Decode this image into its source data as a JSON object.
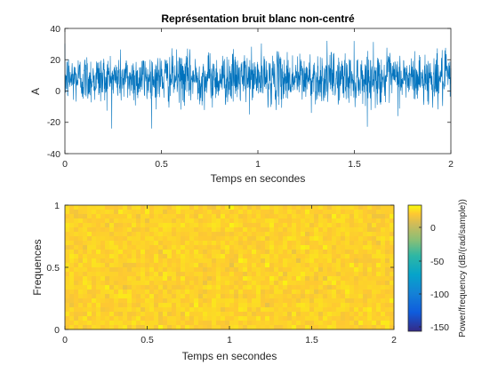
{
  "chart_data": [
    {
      "type": "line",
      "title": "Représentation bruit blanc non-centré",
      "xlabel": "Temps en secondes",
      "ylabel": "A",
      "xlim": [
        0,
        2
      ],
      "ylim": [
        -40,
        40
      ],
      "xticks": [
        "0",
        "0.5",
        "1",
        "1.5",
        "2"
      ],
      "yticks": [
        "-40",
        "-20",
        "0",
        "20",
        "40"
      ],
      "color": "#0072BD",
      "signal": {
        "mean": 8,
        "std": 8,
        "min": -24,
        "max": 36,
        "duration_s": 2
      }
    },
    {
      "type": "heatmap",
      "xlabel": "Temps en secondes",
      "ylabel": "Frequences",
      "xlim": [
        0,
        2
      ],
      "ylim": [
        0,
        1
      ],
      "xticks": [
        "0",
        "0.5",
        "1",
        "1.5",
        "2"
      ],
      "yticks": [
        "0",
        "0.5",
        "1"
      ],
      "colorbar": {
        "label": "Power/frequency (dB/(rad/sample))",
        "ticks": [
          "0",
          "-50",
          "-100",
          "-150"
        ],
        "range": [
          -155,
          35
        ],
        "colormap": "parula"
      },
      "level_db": {
        "mean": 24,
        "spread": 5
      }
    }
  ]
}
